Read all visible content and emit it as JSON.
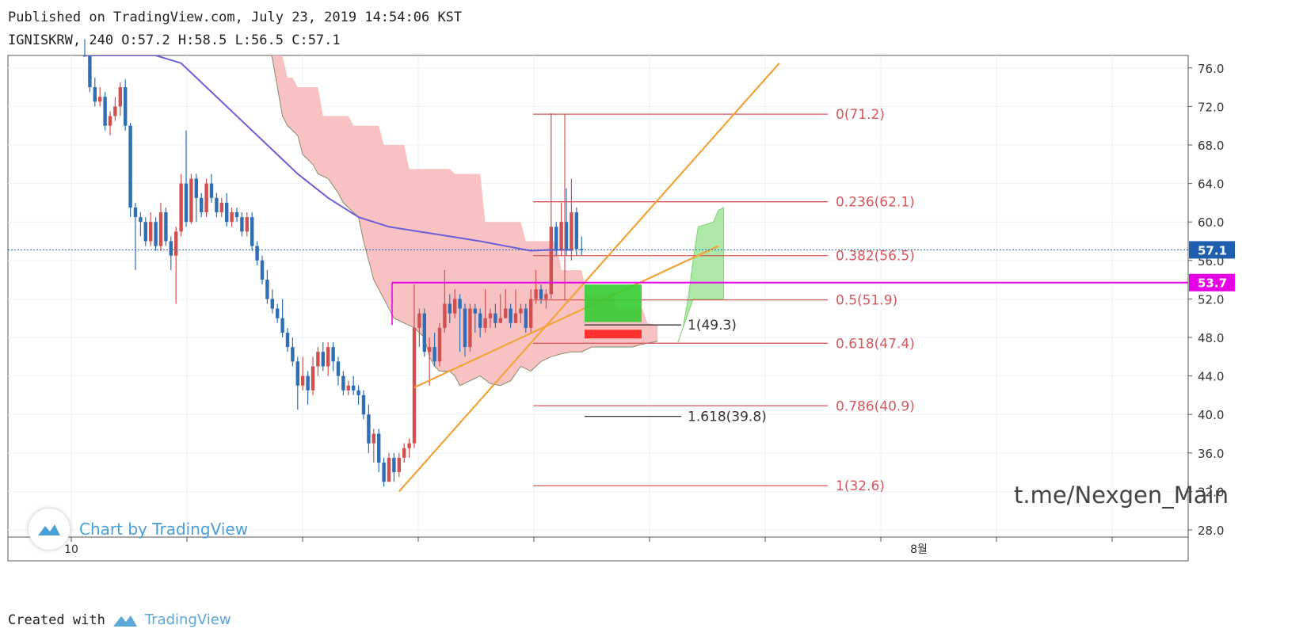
{
  "header": {
    "published": "Published on TradingView.com, July 23, 2019 14:54:06 KST",
    "ohlc": "IGNISKRW, 240 O:57.2 H:58.5 L:56.5 C:57.1"
  },
  "footer": {
    "created_with": "Created with",
    "brand": "TradingView"
  },
  "badge": {
    "text": "Chart by TradingView",
    "icon": "tradingview-logo-icon"
  },
  "watermark": "t.me/Nexgen_Main",
  "colors": {
    "up": "#d0504f",
    "down": "#2f6db5",
    "cloud": "#f7b7b7",
    "ma": "#6a5fd6",
    "fib": "#d8575a",
    "trend": "#f2a33a",
    "hline": "#e600e6",
    "green_box": "#33cc33",
    "red_box": "#ff2020",
    "last_price_bg": "#1d5fae",
    "hline_bg": "#e600e6"
  },
  "chart_data": {
    "type": "candlestick",
    "symbol": "IGNISKRW",
    "interval": "240",
    "ohlc_last": {
      "open": 57.2,
      "high": 58.5,
      "low": 56.5,
      "close": 57.1
    },
    "y_axis": {
      "ticks": [
        "28.0",
        "32.0",
        "36.0",
        "40.0",
        "44.0",
        "48.0",
        "52.0",
        "56.0",
        "60.0",
        "64.0",
        "68.0",
        "72.0",
        "76.0"
      ],
      "range": [
        27,
        78
      ]
    },
    "x_axis": {
      "labels": [
        {
          "label": "10",
          "index": 0
        },
        {
          "label": "8월",
          "index": 92
        }
      ]
    },
    "candles": [
      [
        82,
        79.5,
        82,
        79
      ],
      [
        79.5,
        74,
        80,
        73.5
      ],
      [
        74,
        72.5,
        75,
        72
      ],
      [
        72.5,
        73,
        74,
        72
      ],
      [
        73,
        70,
        73.5,
        69.5
      ],
      [
        70,
        71,
        71.5,
        69
      ],
      [
        71,
        72,
        73,
        70.5
      ],
      [
        72,
        74,
        74.5,
        71
      ],
      [
        74,
        70,
        74.8,
        69.5
      ],
      [
        70,
        61.5,
        70.3,
        60.5
      ],
      [
        61.5,
        60.5,
        62,
        55
      ],
      [
        60.5,
        60,
        61,
        58.5
      ],
      [
        60,
        58,
        60.5,
        57.5
      ],
      [
        58,
        60,
        61,
        57.5
      ],
      [
        60,
        57.5,
        60.5,
        57
      ],
      [
        57.5,
        61,
        62,
        57
      ],
      [
        61,
        58,
        61.5,
        57.5
      ],
      [
        58,
        56.5,
        58.5,
        55
      ],
      [
        56.5,
        59,
        59.5,
        51.5
      ],
      [
        59,
        64,
        65,
        58.5
      ],
      [
        64,
        60,
        69.5,
        59.5
      ],
      [
        60,
        64.5,
        65,
        59.8
      ],
      [
        64.5,
        62.5,
        65,
        60
      ],
      [
        62.5,
        61,
        63,
        60.5
      ],
      [
        61,
        64,
        64.5,
        60.5
      ],
      [
        64,
        62.5,
        65,
        62
      ],
      [
        62.5,
        61,
        63,
        60.5
      ],
      [
        61,
        62,
        62.5,
        60.5
      ],
      [
        62,
        60,
        63,
        59.5
      ],
      [
        60,
        61,
        61.5,
        59.5
      ],
      [
        61,
        60.5,
        61.5,
        60
      ],
      [
        60.5,
        59,
        61,
        58.5
      ],
      [
        59,
        60.5,
        61,
        58.5
      ],
      [
        60.5,
        57.5,
        61,
        57
      ],
      [
        57.5,
        56,
        58,
        55.5
      ],
      [
        56,
        54,
        56.5,
        53.5
      ],
      [
        54,
        52,
        55,
        51.5
      ],
      [
        52,
        51,
        53,
        50.5
      ],
      [
        51,
        50,
        51.5,
        49.5
      ],
      [
        50,
        48.5,
        52,
        48
      ],
      [
        48.5,
        47,
        49,
        46.5
      ],
      [
        47,
        45.5,
        48,
        45
      ],
      [
        45.5,
        43,
        46,
        40.5
      ],
      [
        43,
        44,
        46,
        42.5
      ],
      [
        44,
        42.5,
        44.5,
        41
      ],
      [
        42.5,
        45,
        46,
        42
      ],
      [
        45,
        46.5,
        47,
        44
      ],
      [
        46.5,
        45,
        47.5,
        44.5
      ],
      [
        45,
        47,
        47.5,
        44
      ],
      [
        47,
        45.5,
        47.5,
        44.5
      ],
      [
        45.5,
        44,
        46,
        43
      ],
      [
        44,
        42.5,
        44.5,
        42
      ],
      [
        42.5,
        43,
        43.5,
        42
      ],
      [
        43,
        42.5,
        44,
        42
      ],
      [
        42.5,
        42,
        43,
        41
      ],
      [
        42,
        40,
        42.5,
        39.5
      ],
      [
        40,
        37,
        41,
        36
      ],
      [
        37,
        38,
        38.5,
        35
      ],
      [
        38,
        35,
        38.5,
        34
      ],
      [
        35,
        33,
        35.5,
        32.5
      ],
      [
        33,
        35.5,
        36,
        33
      ],
      [
        35.5,
        34,
        36,
        33
      ],
      [
        34,
        35.5,
        36,
        33.5
      ],
      [
        35.5,
        36.5,
        37,
        35
      ],
      [
        36.5,
        37,
        37.5,
        35.5
      ],
      [
        37,
        49,
        53.5,
        36.5
      ],
      [
        49,
        50.5,
        51,
        47
      ],
      [
        50.5,
        46.5,
        51,
        46
      ],
      [
        46.5,
        47,
        48,
        43
      ],
      [
        47,
        45.5,
        48.5,
        45
      ],
      [
        45.5,
        49,
        49.5,
        45
      ],
      [
        49,
        51.5,
        55,
        48.5
      ],
      [
        51.5,
        50.5,
        52.5,
        49.5
      ],
      [
        50.5,
        52,
        53,
        50
      ],
      [
        52,
        51,
        52.5,
        46.5
      ],
      [
        51,
        47,
        51.5,
        46
      ],
      [
        47,
        51,
        51.5,
        46.5
      ],
      [
        51,
        50.5,
        51.5,
        48.5
      ],
      [
        50.5,
        49,
        51,
        48
      ],
      [
        49,
        50,
        53,
        48.5
      ],
      [
        50,
        50.5,
        51,
        49
      ],
      [
        50.5,
        49.5,
        51.5,
        49
      ],
      [
        49.5,
        50,
        52.5,
        49.5
      ],
      [
        50,
        51,
        53,
        50.5
      ],
      [
        51,
        49.5,
        51.5,
        49
      ],
      [
        49.5,
        50.5,
        53,
        49.5
      ],
      [
        50.5,
        51,
        51.5,
        49.5
      ],
      [
        51,
        49,
        51.5,
        48.5
      ],
      [
        49,
        52,
        53,
        48.5
      ],
      [
        52,
        53,
        55,
        51.5
      ],
      [
        53,
        52,
        53.5,
        51.5
      ],
      [
        52,
        52.5,
        53,
        51
      ],
      [
        52.5,
        59.5,
        71.3,
        52
      ],
      [
        59.5,
        57,
        60,
        56.5
      ],
      [
        57,
        60,
        62,
        56.5
      ],
      [
        60,
        57,
        63.5,
        56.5
      ],
      [
        57,
        61,
        64.5,
        56
      ],
      [
        61,
        57.2,
        61.5,
        56.5
      ],
      [
        57.2,
        57.1,
        58.5,
        56.5
      ]
    ],
    "moving_average": [
      [
        0,
        81
      ],
      [
        8,
        80
      ],
      [
        14,
        78
      ],
      [
        19,
        76.5
      ],
      [
        24,
        74
      ],
      [
        30,
        71
      ],
      [
        36,
        68
      ],
      [
        42,
        65
      ],
      [
        48,
        62.5
      ],
      [
        54,
        60.5
      ],
      [
        60,
        59.5
      ],
      [
        66,
        59
      ],
      [
        72,
        58.5
      ],
      [
        78,
        58
      ],
      [
        84,
        57.4
      ],
      [
        88,
        57
      ],
      [
        92,
        57.1
      ],
      [
        96,
        57.1
      ]
    ],
    "ichimoku_cloud": {
      "upper": [
        [
          35,
          80
        ],
        [
          38,
          79.5
        ],
        [
          40,
          75
        ],
        [
          41,
          75
        ],
        [
          42,
          74
        ],
        [
          46,
          74
        ],
        [
          47,
          71
        ],
        [
          52,
          71
        ],
        [
          53,
          70
        ],
        [
          58,
          70
        ],
        [
          59,
          68
        ],
        [
          63,
          68
        ],
        [
          64,
          65.5
        ],
        [
          72,
          65.5
        ],
        [
          73,
          65
        ],
        [
          78,
          65
        ],
        [
          79,
          60
        ],
        [
          86,
          60
        ],
        [
          87,
          58
        ],
        [
          93,
          58
        ],
        [
          94,
          55
        ],
        [
          98,
          55
        ],
        [
          99,
          52.5
        ],
        [
          104,
          52.5
        ],
        [
          105,
          51
        ],
        [
          110,
          51
        ],
        [
          111,
          49.5
        ],
        [
          113,
          49.3
        ]
      ],
      "lower": [
        [
          35,
          80
        ],
        [
          36,
          79
        ],
        [
          37,
          77
        ],
        [
          38,
          74
        ],
        [
          39,
          71
        ],
        [
          40,
          70
        ],
        [
          42,
          69
        ],
        [
          43,
          67
        ],
        [
          45,
          66
        ],
        [
          46,
          65
        ],
        [
          48,
          64.5
        ],
        [
          50,
          63
        ],
        [
          51,
          62
        ],
        [
          52,
          61.5
        ],
        [
          54,
          60.5
        ],
        [
          55,
          58
        ],
        [
          56,
          56
        ],
        [
          57,
          54
        ],
        [
          58,
          53
        ],
        [
          59,
          52
        ],
        [
          60,
          51
        ],
        [
          61,
          50
        ],
        [
          63,
          49.5
        ],
        [
          65,
          49
        ],
        [
          67,
          48
        ],
        [
          68,
          46
        ],
        [
          69,
          45
        ],
        [
          70,
          44.5
        ],
        [
          72,
          44.5
        ],
        [
          73,
          44
        ],
        [
          74,
          43
        ],
        [
          76,
          43.5
        ],
        [
          78,
          44
        ],
        [
          80,
          43.2
        ],
        [
          82,
          43
        ],
        [
          84,
          43.5
        ],
        [
          86,
          45
        ],
        [
          88,
          44.5
        ],
        [
          90,
          45.5
        ],
        [
          92,
          46
        ],
        [
          94,
          46.3
        ],
        [
          96,
          46.5
        ],
        [
          98,
          46.5
        ],
        [
          100,
          47
        ],
        [
          102,
          47
        ],
        [
          104,
          47
        ],
        [
          106,
          47
        ],
        [
          108,
          47
        ],
        [
          110,
          47.3
        ],
        [
          113,
          47.6
        ]
      ]
    },
    "future_cloud": [
      [
        117,
        47.5
      ],
      [
        118,
        49
      ],
      [
        119,
        52
      ],
      [
        120,
        56
      ],
      [
        121,
        59.5
      ],
      [
        123,
        59.8
      ],
      [
        124,
        60
      ],
      [
        125,
        61.2
      ],
      [
        126,
        61.5
      ],
      [
        126,
        52
      ],
      [
        120,
        52
      ]
    ],
    "fibonacci": [
      {
        "label": "0(71.2)",
        "value": 71.2
      },
      {
        "label": "0.236(62.1)",
        "value": 62.1
      },
      {
        "label": "0.382(56.5)",
        "value": 56.5
      },
      {
        "label": "0.5(51.9)",
        "value": 51.9
      },
      {
        "label": "0.618(47.4)",
        "value": 47.4
      },
      {
        "label": "0.786(40.9)",
        "value": 40.9
      },
      {
        "label": "1(32.6)",
        "value": 32.6
      }
    ],
    "extension": [
      {
        "label": "1(49.3)",
        "value": 49.3
      },
      {
        "label": "1.618(39.8)",
        "value": 39.8
      }
    ],
    "horizontal_level": {
      "value": 53.7,
      "label": "53.7"
    },
    "last_price": {
      "value": 57.1,
      "label": "57.1"
    },
    "trendlines": [
      {
        "from": [
          62,
          32.0
        ],
        "to": [
          137,
          76.5
        ]
      },
      {
        "from": [
          65,
          42.8
        ],
        "to": [
          125,
          57.5
        ]
      }
    ],
    "target_boxes": [
      {
        "color": "green",
        "y": [
          49.6,
          53.5
        ]
      },
      {
        "color": "red",
        "y": [
          47.9,
          48.8
        ]
      }
    ]
  }
}
